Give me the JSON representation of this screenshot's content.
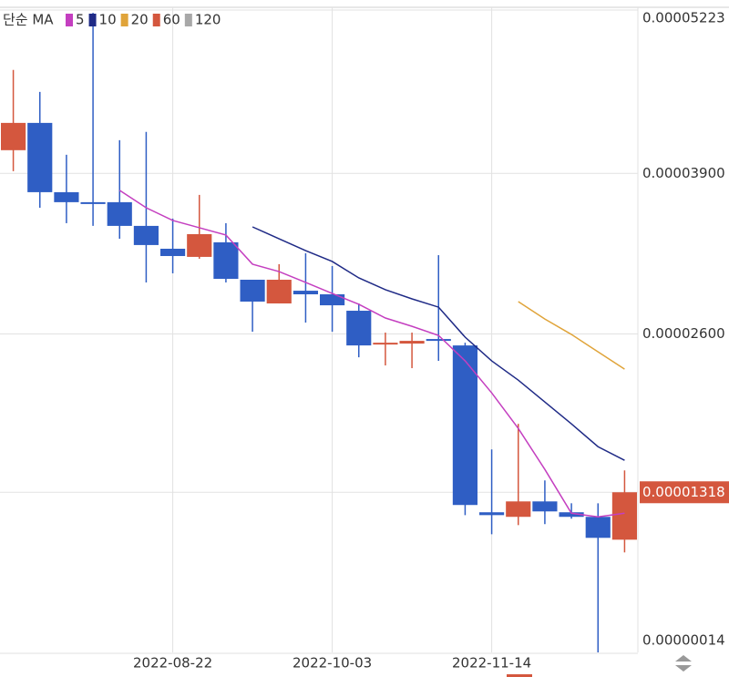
{
  "chart_data": {
    "type": "candlestick",
    "legend_title": "단순 MA",
    "categories": [
      null,
      null,
      null,
      null,
      null,
      null,
      "2022-08-22",
      null,
      null,
      null,
      null,
      null,
      "2022-10-03",
      null,
      null,
      null,
      null,
      null,
      "2022-11-14",
      null,
      null,
      null,
      null,
      null
    ],
    "open": [
      4.088e-05,
      4.309e-05,
      3.748e-05,
      3.667e-05,
      3.667e-05,
      3.475e-05,
      3.29e-05,
      3.224e-05,
      3.342e-05,
      3.039e-05,
      2.847e-05,
      2.95e-05,
      2.921e-05,
      2.788e-05,
      2.515e-05,
      2.522e-05,
      2.559e-05,
      2.507e-05,
      1.156e-05,
      1.119e-05,
      1.244e-05,
      1.156e-05,
      1.119e-05,
      9.34e-06
    ],
    "high": [
      4.738e-05,
      4.56e-05,
      4.051e-05,
      5.2e-05,
      4.169e-05,
      4.236e-05,
      3.534e-05,
      3.726e-05,
      3.497e-05,
      3.039e-05,
      3.165e-05,
      3.253e-05,
      3.15e-05,
      2.847e-05,
      2.611e-05,
      2.611e-05,
      3.238e-05,
      2.529e-05,
      1.665e-05,
      1.872e-05,
      1.414e-05,
      1.229e-05,
      1.229e-05,
      1.495e-05
    ],
    "low": [
      3.918e-05,
      3.622e-05,
      3.497e-05,
      3.475e-05,
      3.371e-05,
      3.017e-05,
      3.091e-05,
      3.209e-05,
      3.017e-05,
      2.618e-05,
      2.847e-05,
      2.692e-05,
      2.618e-05,
      2.411e-05,
      2.345e-05,
      2.323e-05,
      2.382e-05,
      1.133e-05,
      9.78e-06,
      1.052e-05,
      1.06e-05,
      1.104e-05,
      2e-07,
      8.31e-06
    ],
    "close": [
      4.309e-05,
      3.748e-05,
      3.667e-05,
      3.659e-05,
      3.475e-05,
      3.32e-05,
      3.231e-05,
      3.408e-05,
      3.046e-05,
      2.862e-05,
      3.039e-05,
      2.921e-05,
      2.832e-05,
      2.507e-05,
      2.529e-05,
      2.544e-05,
      2.544e-05,
      1.215e-05,
      1.133e-05,
      1.244e-05,
      1.163e-05,
      1.119e-05,
      9.49e-06,
      1.318e-05
    ],
    "up_color": "#d4573e",
    "down_color": "#2f5ec4",
    "series": [
      {
        "name": "5",
        "color": "#c43fc0",
        "values": [
          null,
          null,
          null,
          null,
          3.763e-05,
          3.622e-05,
          3.519e-05,
          3.46e-05,
          3.401e-05,
          3.165e-05,
          3.105e-05,
          3.017e-05,
          2.928e-05,
          2.84e-05,
          2.729e-05,
          2.662e-05,
          2.588e-05,
          2.382e-05,
          2.123e-05,
          1.835e-05,
          1.503e-05,
          1.148e-05,
          1.119e-05,
          1.148e-05
        ]
      },
      {
        "name": "10",
        "color": "#1f2a86",
        "values": [
          null,
          null,
          null,
          null,
          null,
          null,
          null,
          null,
          null,
          3.467e-05,
          3.371e-05,
          3.275e-05,
          3.187e-05,
          3.054e-05,
          2.958e-05,
          2.884e-05,
          2.817e-05,
          2.574e-05,
          2.382e-05,
          2.226e-05,
          2.049e-05,
          1.872e-05,
          1.687e-05,
          1.577e-05
        ]
      },
      {
        "name": "20",
        "color": "#e0a43a",
        "values": [
          null,
          null,
          null,
          null,
          null,
          null,
          null,
          null,
          null,
          null,
          null,
          null,
          null,
          null,
          null,
          null,
          null,
          null,
          null,
          2.862e-05,
          2.721e-05,
          2.596e-05,
          2.455e-05,
          2.315e-05
        ]
      },
      {
        "name": "60",
        "color": "#d4573e",
        "values": [
          null,
          null,
          null,
          null,
          null,
          null,
          null,
          null,
          null,
          null,
          null,
          null,
          null,
          null,
          null,
          null,
          null,
          null,
          null,
          null,
          null,
          null,
          null,
          null
        ]
      },
      {
        "name": "120",
        "color": "#a8a8a8",
        "values": [
          null,
          null,
          null,
          null,
          null,
          null,
          null,
          null,
          null,
          null,
          null,
          null,
          null,
          null,
          null,
          null,
          null,
          null,
          null,
          null,
          null,
          null,
          null,
          null
        ]
      }
    ],
    "ylim": [
      1.4e-07,
      5.223e-05
    ],
    "yticks": [
      {
        "value": 1.4e-07,
        "label": "0.00000014"
      },
      {
        "value": 2.6e-05,
        "label": "0.00002600"
      },
      {
        "value": 3.9e-05,
        "label": "0.00003900"
      },
      {
        "value": 5.223e-05,
        "label": "0.00005223"
      }
    ],
    "last_price": {
      "value": 1.318e-05,
      "label": "0.00001318"
    },
    "grid": true
  }
}
